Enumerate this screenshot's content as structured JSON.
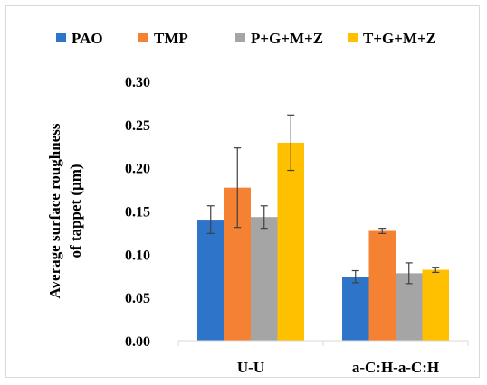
{
  "chart_data": {
    "type": "bar",
    "title": "",
    "xlabel": "",
    "ylabel": "Average surface roughness of tappet (μm)",
    "ylabel_lines": [
      "Average surface roughness",
      "of tappet (μm)"
    ],
    "ylim": [
      0,
      0.3
    ],
    "yticks": [
      "0.00",
      "0.05",
      "0.10",
      "0.15",
      "0.20",
      "0.25",
      "0.30"
    ],
    "grid": false,
    "legend_position": "top",
    "categories": [
      "U-U",
      "a-C:H-a-C:H"
    ],
    "series": [
      {
        "name": "PAO",
        "color": "#2e75c9",
        "values": [
          0.14,
          0.074
        ],
        "errors": [
          0.016,
          0.007
        ]
      },
      {
        "name": "TMP",
        "color": "#f58233",
        "values": [
          0.177,
          0.127
        ],
        "errors": [
          0.046,
          0.003
        ]
      },
      {
        "name": "P+G+M+Z",
        "color": "#a5a5a5",
        "values": [
          0.143,
          0.078
        ],
        "errors": [
          0.013,
          0.012
        ]
      },
      {
        "name": "T+G+M+Z",
        "color": "#ffc000",
        "values": [
          0.229,
          0.082
        ],
        "errors": [
          0.032,
          0.003
        ]
      }
    ]
  }
}
